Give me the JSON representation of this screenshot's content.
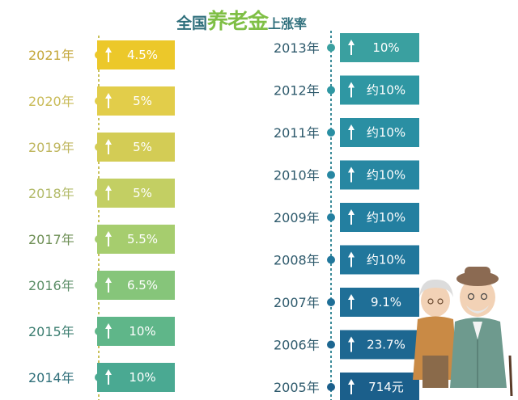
{
  "title": {
    "part1": "全国",
    "part2": "养老金",
    "part3": "上涨率"
  },
  "chart_data": {
    "type": "table",
    "title": "全国养老金上涨率",
    "columns": [
      {
        "rows": [
          {
            "year": "2021年",
            "value": "4.5%",
            "color": "#ecc82a",
            "year_color": "#c4a73a"
          },
          {
            "year": "2020年",
            "value": "5%",
            "color": "#e2cd4a",
            "year_color": "#c9bb58"
          },
          {
            "year": "2019年",
            "value": "5%",
            "color": "#d3cc55",
            "year_color": "#bfb65e"
          },
          {
            "year": "2018年",
            "value": "5%",
            "color": "#c3cf63",
            "year_color": "#b3bb6a"
          },
          {
            "year": "2017年",
            "value": "5.5%",
            "color": "#a6cd6e",
            "year_color": "#6e8f55"
          },
          {
            "year": "2016年",
            "value": "6.5%",
            "color": "#86c57a",
            "year_color": "#5d8f68"
          },
          {
            "year": "2015年",
            "value": "10%",
            "color": "#5fb689",
            "year_color": "#3e7f72"
          },
          {
            "year": "2014年",
            "value": "10%",
            "color": "#4aa992",
            "year_color": "#2f6f7a"
          }
        ]
      },
      {
        "rows": [
          {
            "year": "2013年",
            "value": "10%",
            "color": "#3aa0a0",
            "year_color": "#2e5a6c"
          },
          {
            "year": "2012年",
            "value": "约10%",
            "color": "#2f97a3",
            "year_color": "#2e5a6c"
          },
          {
            "year": "2011年",
            "value": "约10%",
            "color": "#2a8fa3",
            "year_color": "#2e5a6c"
          },
          {
            "year": "2010年",
            "value": "约10%",
            "color": "#2787a2",
            "year_color": "#2e5a6c"
          },
          {
            "year": "2009年",
            "value": "约10%",
            "color": "#237fa0",
            "year_color": "#2e5a6c"
          },
          {
            "year": "2008年",
            "value": "约10%",
            "color": "#21779c",
            "year_color": "#2e5a6c"
          },
          {
            "year": "2007年",
            "value": "9.1%",
            "color": "#1f6f97",
            "year_color": "#2e5a6c"
          },
          {
            "year": "2006年",
            "value": "23.7%",
            "color": "#1d6791",
            "year_color": "#2e5a6c"
          },
          {
            "year": "2005年",
            "value": "714元",
            "color": "#1b5f8b",
            "year_color": "#2e5a6c"
          }
        ]
      }
    ]
  }
}
